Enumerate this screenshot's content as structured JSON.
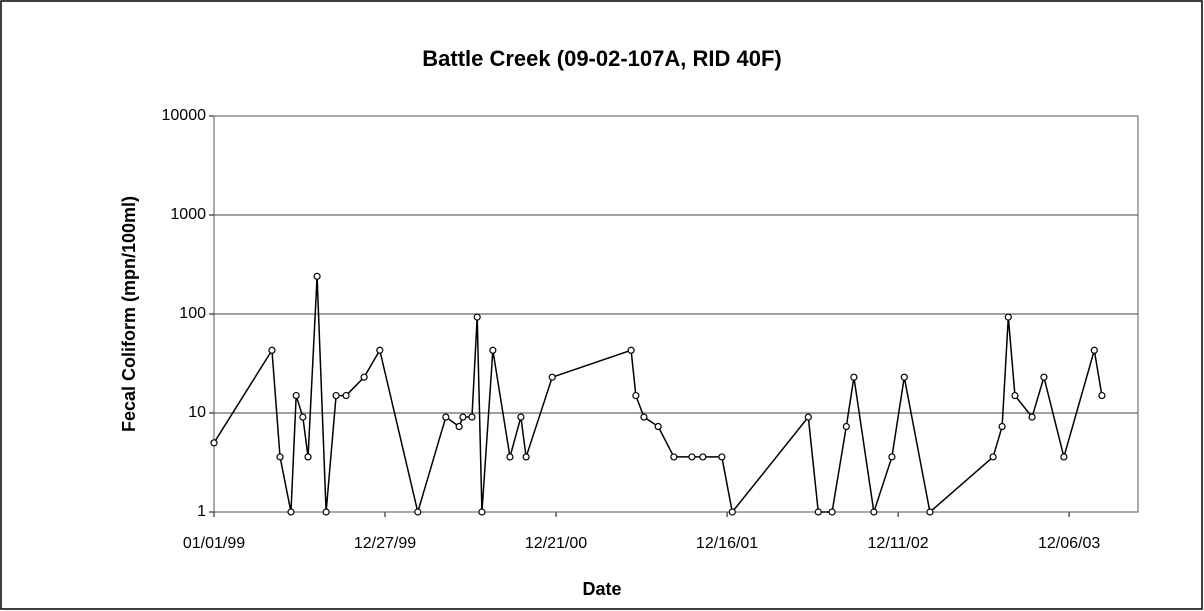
{
  "chart_data": {
    "type": "line",
    "title": "Battle Creek (09-02-107A, RID 40F)",
    "x_label": "Date",
    "y_label": "Fecal Coliform (mpn/100ml)",
    "log_y": true,
    "grid": true,
    "color": "#000000",
    "x": [
      "1999-01-01",
      "1999-05-03",
      "1999-05-20",
      "1999-06-12",
      "1999-06-23",
      "1999-07-07",
      "1999-07-18",
      "1999-08-06",
      "1999-08-25",
      "1999-09-15",
      "1999-10-06",
      "1999-11-13",
      "1999-12-16",
      "2000-03-05",
      "2000-05-03",
      "2000-05-31",
      "2000-06-08",
      "2000-06-27",
      "2000-07-08",
      "2000-07-18",
      "2000-08-10",
      "2000-09-15",
      "2000-10-08",
      "2000-10-19",
      "2000-12-13",
      "2001-05-28",
      "2001-06-07",
      "2001-06-24",
      "2001-07-24",
      "2001-08-26",
      "2001-10-03",
      "2001-10-26",
      "2001-12-05",
      "2001-12-27",
      "2002-06-05",
      "2002-06-26",
      "2002-07-25",
      "2002-08-24",
      "2002-09-09",
      "2002-10-21",
      "2002-11-28",
      "2002-12-24",
      "2003-02-16",
      "2003-06-29",
      "2003-07-18",
      "2003-07-31",
      "2003-08-14",
      "2003-09-19",
      "2003-10-14",
      "2003-11-25",
      "2004-01-28",
      "2004-02-13"
    ],
    "values": [
      5,
      43,
      3.6,
      1,
      15,
      9.1,
      3.6,
      240,
      1,
      15,
      15,
      23,
      43,
      1,
      9.1,
      7.3,
      9.1,
      9.1,
      93,
      1,
      43,
      3.6,
      9.1,
      3.6,
      23,
      43,
      15,
      9.1,
      7.3,
      3.6,
      3.6,
      3.6,
      3.6,
      1,
      9.1,
      1,
      1,
      7.3,
      23,
      1,
      3.6,
      23,
      1,
      3.6,
      7.3,
      93,
      15,
      9.1,
      23,
      3.6,
      43,
      15
    ],
    "xlim": [
      "1999-01-01",
      "2004-04-29"
    ],
    "xticks": [
      {
        "value": "1999-01-01",
        "label": "01/01/99"
      },
      {
        "value": "1999-12-27",
        "label": "12/27/99"
      },
      {
        "value": "2000-12-21",
        "label": "12/21/00"
      },
      {
        "value": "2001-12-16",
        "label": "12/16/01"
      },
      {
        "value": "2002-12-11",
        "label": "12/11/02"
      },
      {
        "value": "2003-12-06",
        "label": "12/06/03"
      }
    ],
    "ylim": [
      1,
      10000
    ],
    "yticks": [
      1,
      10,
      100,
      1000,
      10000
    ]
  }
}
